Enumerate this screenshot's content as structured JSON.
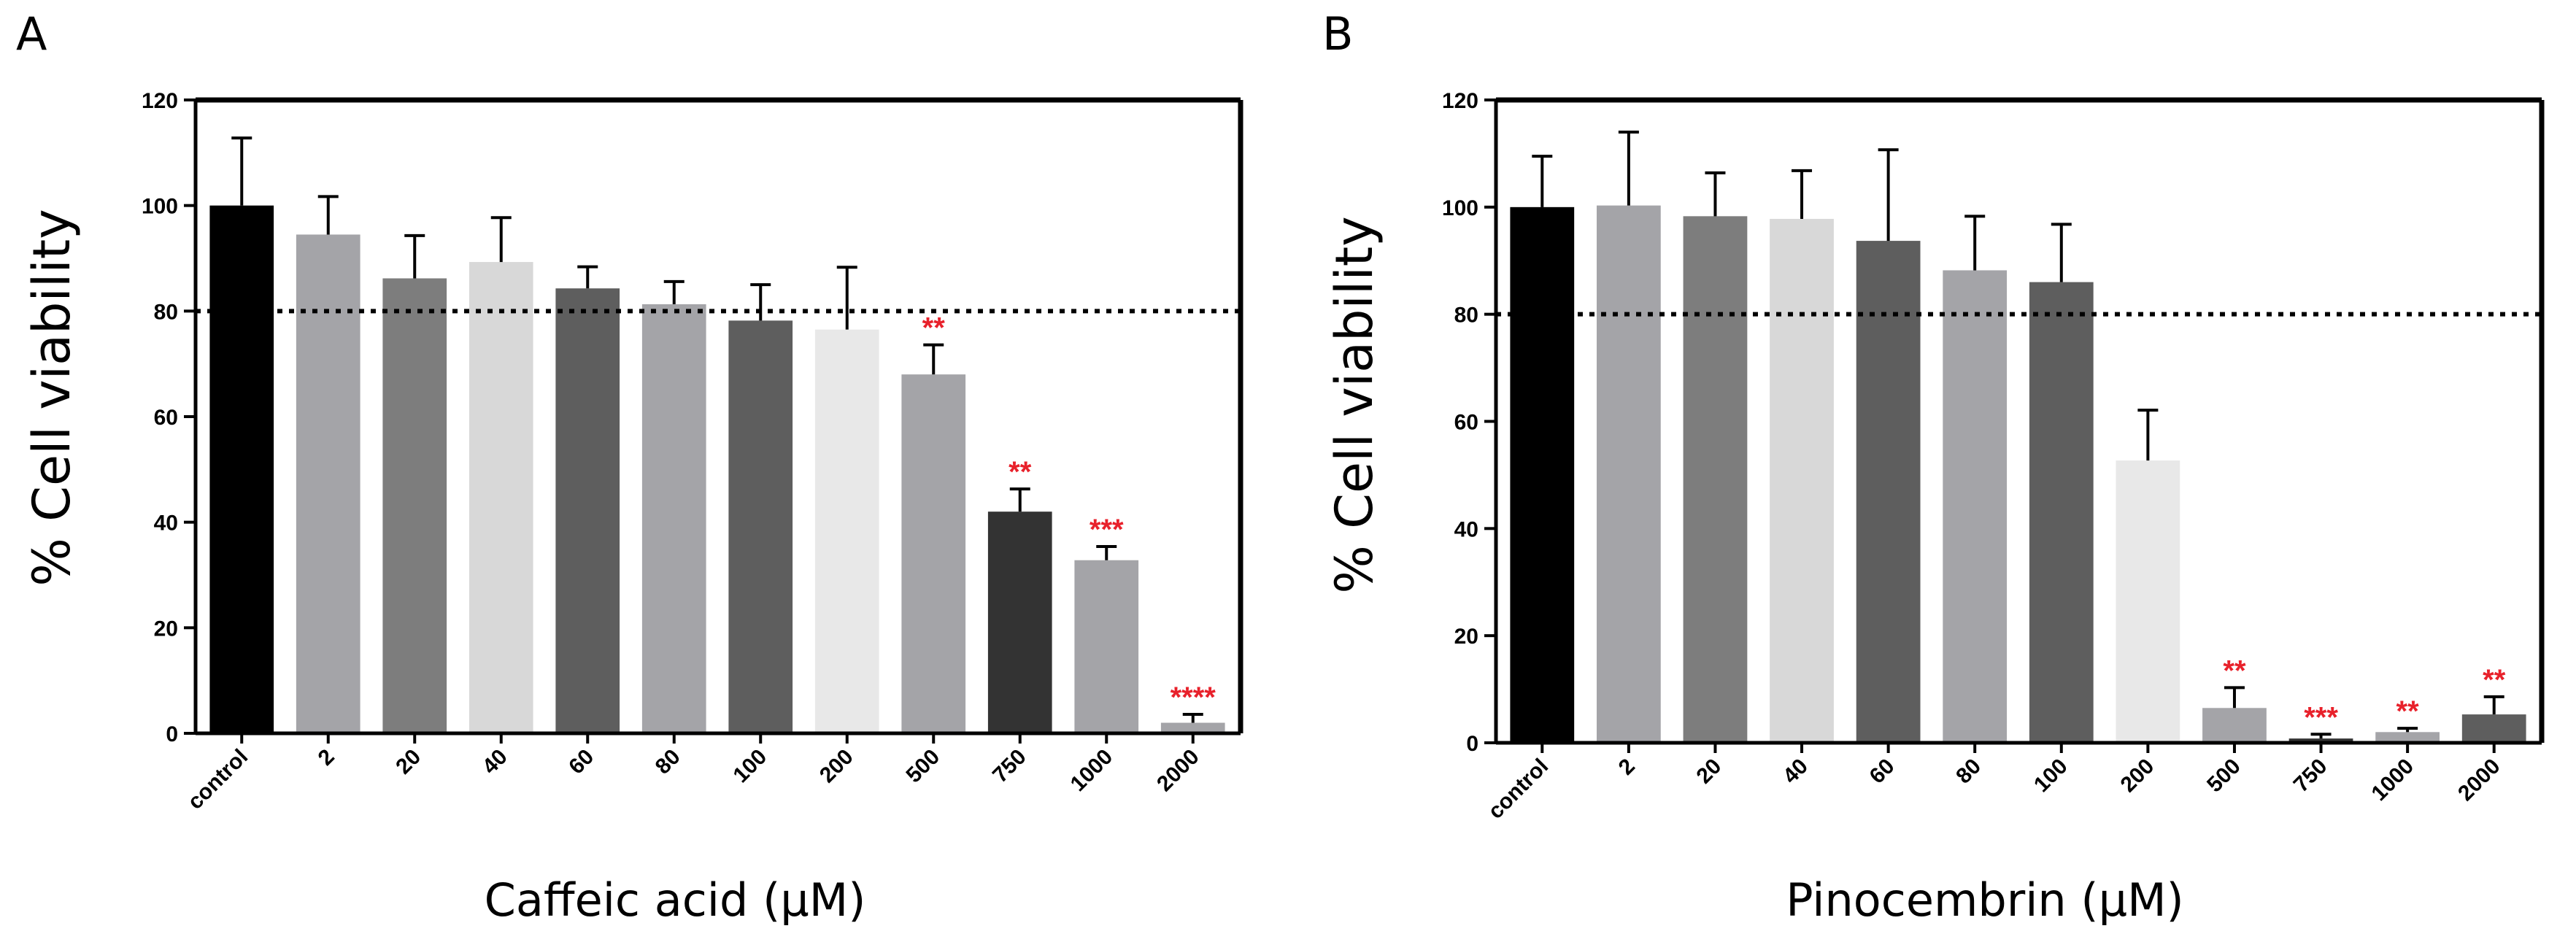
{
  "chart_data": [
    {
      "type": "bar",
      "panel": "A",
      "xlabel": "Caffeic acid (μM)",
      "ylabel": "% Cell viability",
      "ylim": [
        0,
        120
      ],
      "yticks": [
        "0",
        "20",
        "40",
        "60",
        "80",
        "100",
        "120"
      ],
      "reference_line": 80,
      "categories": [
        "control",
        "2",
        "20",
        "40",
        "60",
        "80",
        "100",
        "200",
        "500",
        "750",
        "1000",
        "2000"
      ],
      "values": [
        100,
        94.5,
        86.2,
        89.3,
        84.3,
        81.3,
        78.2,
        76.5,
        68,
        42,
        32.8,
        2
      ],
      "errors": [
        12.8,
        7.2,
        8.1,
        8.4,
        4.1,
        4.3,
        6.8,
        11.8,
        5.6,
        4.3,
        2.6,
        1.6
      ],
      "significance": [
        "",
        "",
        "",
        "",
        "",
        "",
        "",
        "",
        "**",
        "**",
        "***",
        "****"
      ],
      "colors": [
        "#000000",
        "#a4a4a8",
        "#7d7d7d",
        "#d8d8d8",
        "#5e5e5e",
        "#a4a4a8",
        "#5e5e5e",
        "#e8e8e8",
        "#a4a4a8",
        "#333333",
        "#a4a4a8",
        "#a4a4a8"
      ]
    },
    {
      "type": "bar",
      "panel": "B",
      "xlabel": "Pinocembrin (μM)",
      "ylabel": "% Cell viability",
      "ylim": [
        0,
        120
      ],
      "yticks": [
        "0",
        "20",
        "40",
        "60",
        "80",
        "100",
        "120"
      ],
      "reference_line": 80,
      "categories": [
        "control",
        "2",
        "20",
        "40",
        "60",
        "80",
        "100",
        "200",
        "500",
        "750",
        "1000",
        "2000"
      ],
      "values": [
        100,
        100.3,
        98.3,
        97.8,
        93.7,
        88.2,
        86,
        52.7,
        6.5,
        0.8,
        2,
        5.3
      ],
      "errors": [
        9.5,
        13.7,
        8.1,
        9,
        17,
        10.1,
        10.8,
        9.4,
        3.8,
        0.8,
        0.7,
        3.3
      ],
      "significance": [
        "",
        "",
        "",
        "",
        "",
        "",
        "",
        "",
        "**",
        "***",
        "**",
        "**"
      ],
      "colors": [
        "#000000",
        "#a4a4a8",
        "#7d7d7d",
        "#d8d8d8",
        "#5e5e5e",
        "#a4a4a8",
        "#5e5e5e",
        "#e8e8e8",
        "#a4a4a8",
        "#333333",
        "#a4a4a8",
        "#5e5e5e"
      ]
    }
  ]
}
